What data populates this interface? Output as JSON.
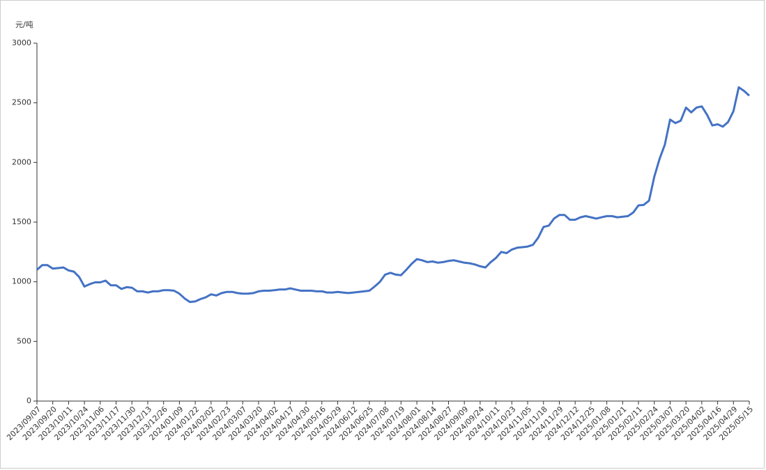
{
  "chart_data": {
    "type": "line",
    "y_label": "元/吨",
    "categories": [
      "2023/09/07",
      null,
      null,
      "2023/09/20",
      null,
      null,
      "2023/10/11",
      null,
      null,
      "2023/10/24",
      null,
      null,
      "2023/11/06",
      null,
      null,
      "2023/11/17",
      null,
      null,
      "2023/11/30",
      null,
      null,
      "2023/12/13",
      null,
      null,
      "2023/12/26",
      null,
      null,
      "2024/01/09",
      null,
      null,
      "2024/01/22",
      null,
      null,
      "2024/02/02",
      null,
      null,
      "2024/02/23",
      null,
      null,
      "2024/03/07",
      null,
      null,
      "2024/03/20",
      null,
      null,
      "2024/04/02",
      null,
      null,
      "2024/04/17",
      null,
      null,
      "2024/04/30",
      null,
      null,
      "2024/05/16",
      null,
      null,
      "2024/05/29",
      null,
      null,
      "2024/06/12",
      null,
      null,
      "2024/06/25",
      null,
      null,
      "2024/07/08",
      null,
      null,
      "2024/07/19",
      null,
      null,
      "2024/08/01",
      null,
      null,
      "2024/08/14",
      null,
      null,
      "2024/08/27",
      null,
      null,
      "2024/09/09",
      null,
      null,
      "2024/09/24",
      null,
      null,
      "2024/10/11",
      null,
      null,
      "2024/10/23",
      null,
      null,
      "2024/11/05",
      null,
      null,
      "2024/11/18",
      null,
      null,
      "2024/11/29",
      null,
      null,
      "2024/12/12",
      null,
      null,
      "2024/12/25",
      null,
      null,
      "2025/01/08",
      null,
      null,
      "2025/01/21",
      null,
      null,
      "2025/02/11",
      null,
      null,
      "2025/02/24",
      null,
      null,
      "2025/03/07",
      null,
      null,
      "2025/03/20",
      null,
      null,
      "2025/04/02",
      null,
      null,
      "2025/04/16",
      null,
      null,
      "2025/04/29",
      null,
      null,
      "2025/05/15"
    ],
    "series": [
      {
        "color": "#4472c4",
        "values": [
          1100,
          1140,
          1140,
          1110,
          1115,
          1120,
          1095,
          1085,
          1040,
          960,
          980,
          995,
          995,
          1010,
          970,
          970,
          940,
          955,
          950,
          920,
          920,
          910,
          920,
          920,
          930,
          930,
          925,
          900,
          860,
          830,
          835,
          855,
          870,
          895,
          885,
          905,
          915,
          915,
          905,
          900,
          900,
          905,
          920,
          925,
          925,
          930,
          935,
          935,
          945,
          935,
          925,
          925,
          925,
          920,
          920,
          910,
          910,
          915,
          910,
          905,
          910,
          915,
          920,
          925,
          960,
          1000,
          1060,
          1075,
          1060,
          1055,
          1100,
          1150,
          1190,
          1180,
          1165,
          1170,
          1160,
          1165,
          1175,
          1180,
          1170,
          1160,
          1155,
          1145,
          1130,
          1120,
          1165,
          1200,
          1250,
          1240,
          1270,
          1285,
          1290,
          1295,
          1310,
          1370,
          1460,
          1470,
          1530,
          1560,
          1560,
          1520,
          1520,
          1540,
          1550,
          1540,
          1530,
          1540,
          1550,
          1550,
          1540,
          1545,
          1550,
          1580,
          1640,
          1645,
          1680,
          1880,
          2030,
          2150,
          2360,
          2330,
          2350,
          2460,
          2420,
          2460,
          2470,
          2400,
          2310,
          2320,
          2300,
          2340,
          2430,
          2630,
          2600,
          2560
        ]
      }
    ],
    "ylim": [
      0,
      3000
    ],
    "yticks": [
      0,
      500,
      1000,
      1500,
      2000,
      2500,
      3000
    ]
  }
}
